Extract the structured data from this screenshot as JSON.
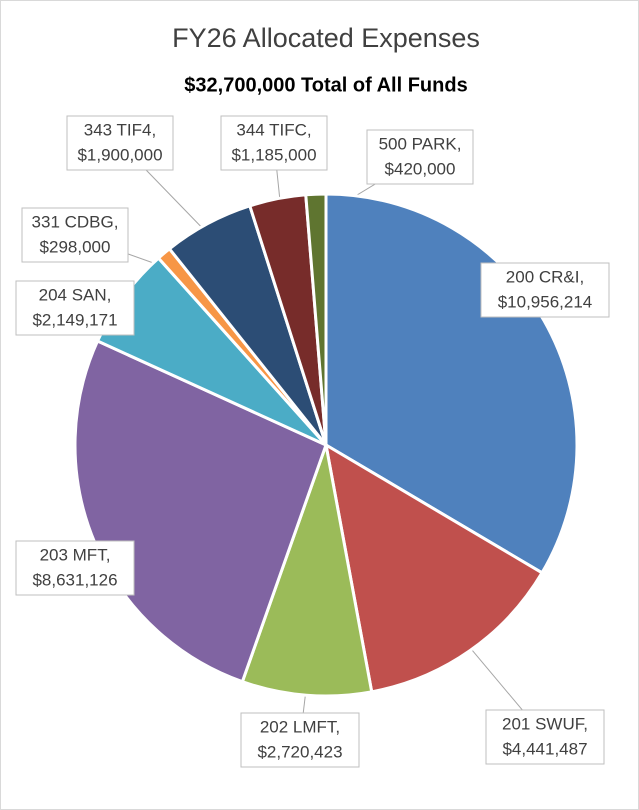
{
  "chart_data": {
    "type": "pie",
    "title": "FY26 Allocated Expenses",
    "subtitle": "$32,700,000 Total of All Funds",
    "categories": [
      "200 CR&I,",
      "201 SWUF,",
      "202 LMFT,",
      "203 MFT,",
      "204 SAN,",
      "331 CDBG,",
      "343 TIF4,",
      "344 TIFC,",
      "500 PARK,"
    ],
    "values": [
      10956214,
      4441487,
      2720423,
      8631126,
      2149171,
      298000,
      1900000,
      1185000,
      420000
    ],
    "value_labels": [
      "$10,956,214",
      "$4,441,487",
      "$2,720,423",
      "$8,631,126",
      "$2,149,171",
      "$298,000",
      "$1,900,000",
      "$1,185,000",
      "$420,000"
    ],
    "colors": [
      "#4f81bd",
      "#c0504d",
      "#9bbb59",
      "#8064a2",
      "#4bacc6",
      "#f79646",
      "#2c4d75",
      "#772c2a",
      "#5f7530"
    ]
  }
}
